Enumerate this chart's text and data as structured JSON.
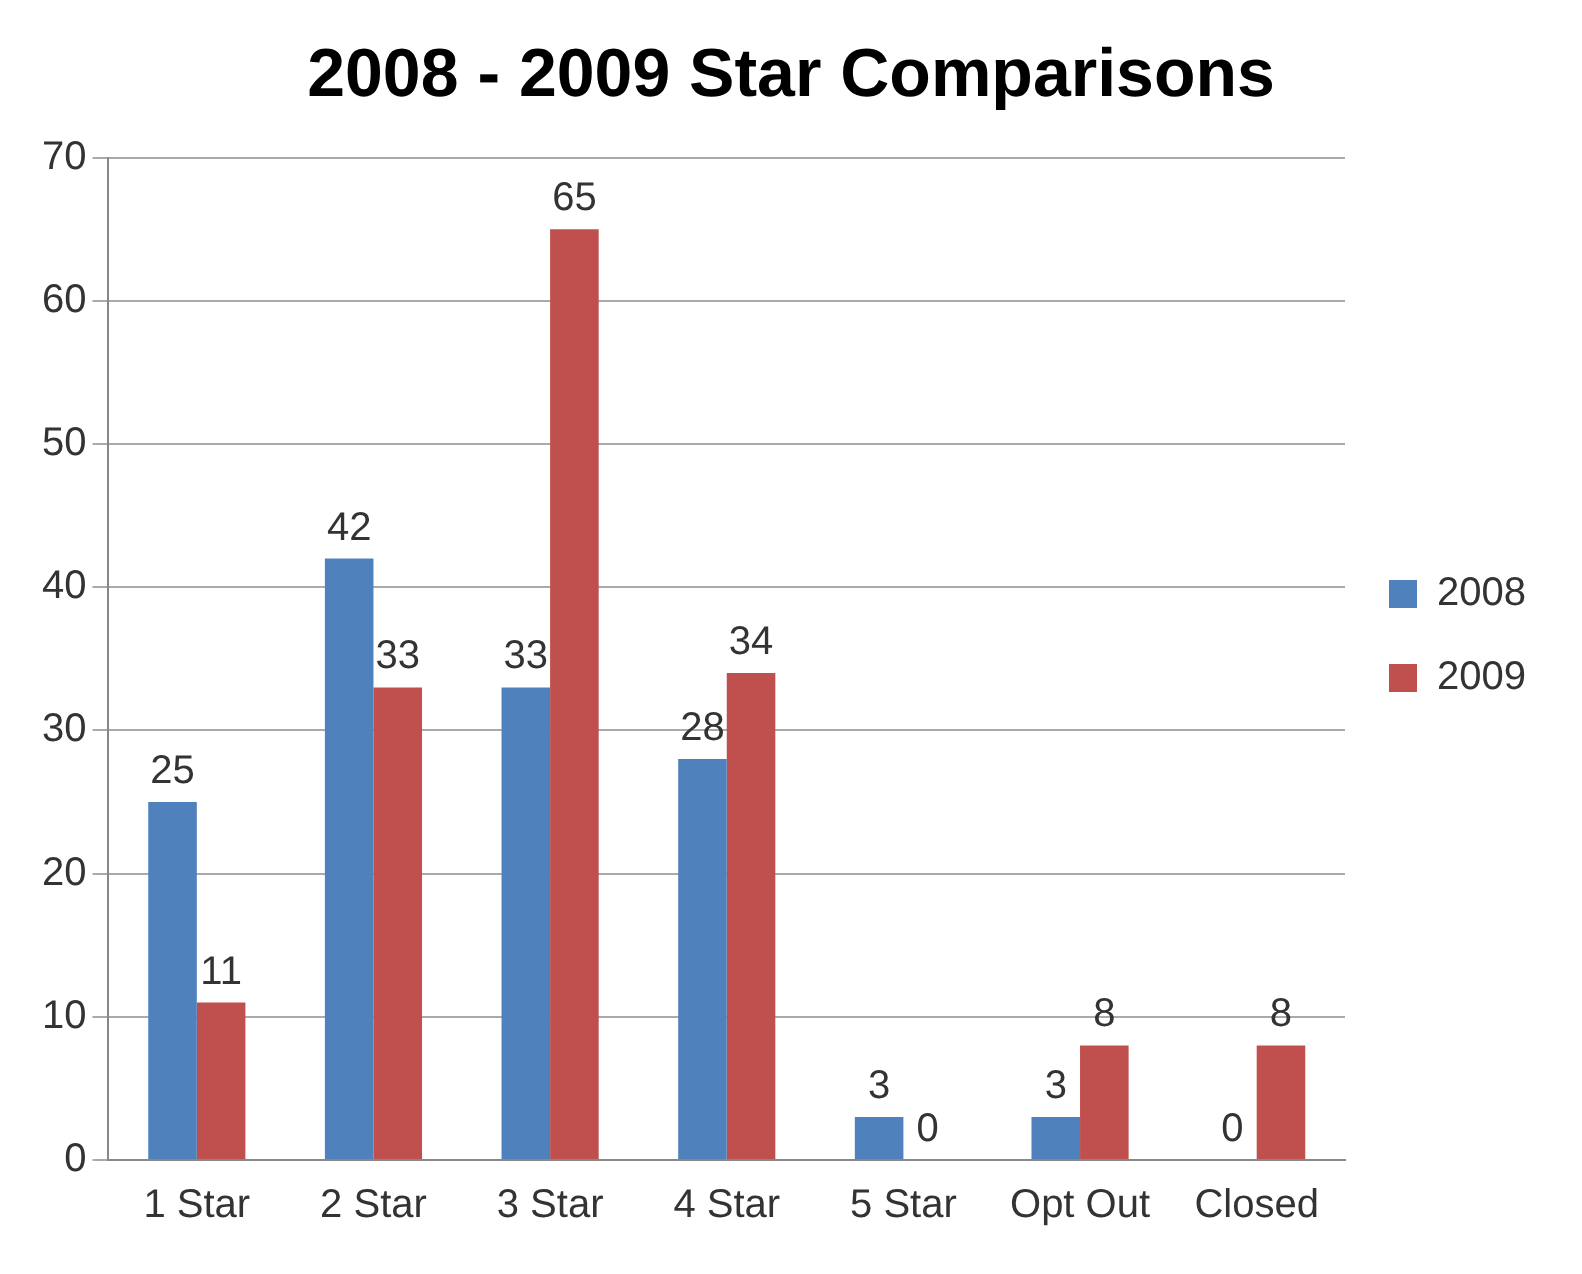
{
  "chart_data": {
    "type": "bar",
    "title": "2008 - 2009 Star Comparisons",
    "categories": [
      "1 Star",
      "2 Star",
      "3 Star",
      "4 Star",
      "5 Star",
      "Opt Out",
      "Closed"
    ],
    "series": [
      {
        "name": "2008",
        "color": "#4f81bd",
        "values": [
          25,
          42,
          33,
          28,
          3,
          3,
          0
        ]
      },
      {
        "name": "2009",
        "color": "#c0504d",
        "values": [
          11,
          33,
          65,
          34,
          0,
          8,
          8
        ]
      }
    ],
    "ylim": [
      0,
      70
    ],
    "yticks": [
      0,
      10,
      20,
      30,
      40,
      50,
      60,
      70
    ],
    "grid": "y",
    "legend": "right",
    "data_labels": true
  }
}
